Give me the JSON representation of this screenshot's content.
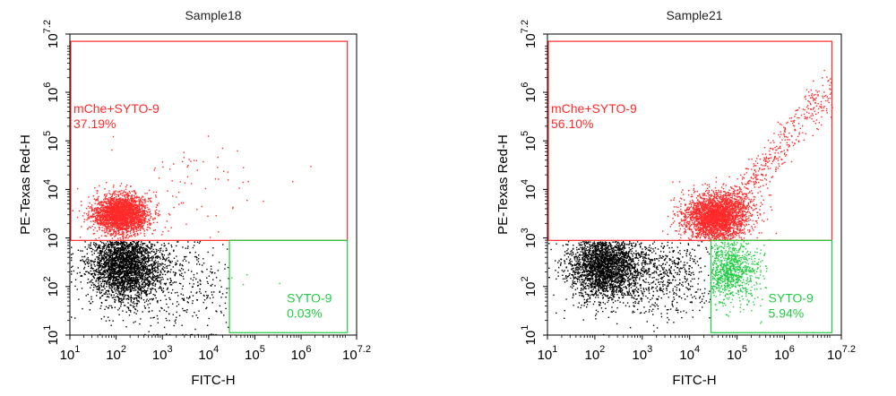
{
  "chart_data": [
    {
      "type": "scatter",
      "title": "Sample18",
      "xlabel": "FITC-H",
      "ylabel": "PE-Texas Red-H",
      "x_scale": "log",
      "y_scale": "log",
      "xlim": [
        1,
        7.2
      ],
      "ylim": [
        1,
        7.2
      ],
      "x_ticks": [
        {
          "base": "10",
          "exp": "1",
          "value": 1
        },
        {
          "base": "10",
          "exp": "2",
          "value": 2
        },
        {
          "base": "10",
          "exp": "3",
          "value": 3
        },
        {
          "base": "10",
          "exp": "4",
          "value": 4
        },
        {
          "base": "10",
          "exp": "5",
          "value": 5
        },
        {
          "base": "10",
          "exp": "6",
          "value": 6
        },
        {
          "base": "10",
          "exp": "7.2",
          "value": 7.2
        }
      ],
      "y_ticks": [
        {
          "base": "10",
          "exp": "1",
          "value": 1
        },
        {
          "base": "10",
          "exp": "2",
          "value": 2
        },
        {
          "base": "10",
          "exp": "3",
          "value": 3
        },
        {
          "base": "10",
          "exp": "4",
          "value": 4
        },
        {
          "base": "10",
          "exp": "5",
          "value": 5
        },
        {
          "base": "10",
          "exp": "6",
          "value": 6
        },
        {
          "base": "10",
          "exp": "7.2",
          "value": 7.2
        }
      ],
      "gates": [
        {
          "name": "mChe+SYTO-9",
          "percent": "37.19%",
          "color": "#ff2a2a",
          "x_range": [
            1,
            7.0
          ],
          "y_range": [
            2.95,
            7.05
          ]
        },
        {
          "name": "SYTO-9",
          "percent": "0.03%",
          "color": "#22cc44",
          "x_range": [
            4.45,
            7.0
          ],
          "y_range": [
            1.05,
            2.95
          ]
        }
      ],
      "populations": [
        {
          "gate": "mChe+SYTO-9",
          "color": "#ff2a2a",
          "center": [
            2.1,
            3.5
          ],
          "spread": [
            0.3,
            0.2
          ],
          "count": 2600
        },
        {
          "gate": "mChe+SYTO-9",
          "color": "#ff2a2a",
          "center": [
            3.6,
            4.0
          ],
          "spread": [
            0.9,
            0.55
          ],
          "count": 70
        },
        {
          "gate": "ungated",
          "color": "#000000",
          "center": [
            2.15,
            2.45
          ],
          "spread": [
            0.38,
            0.35
          ],
          "count": 2700
        },
        {
          "gate": "ungated",
          "color": "#000000",
          "center": [
            3.1,
            2.2
          ],
          "spread": [
            0.85,
            0.55
          ],
          "count": 600
        },
        {
          "gate": "SYTO-9",
          "color": "#22cc44",
          "center": [
            5.0,
            2.5
          ],
          "spread": [
            0.4,
            0.3
          ],
          "count": 4
        }
      ]
    },
    {
      "type": "scatter",
      "title": "Sample21",
      "xlabel": "FITC-H",
      "ylabel": "PE-Texas Red-H",
      "x_scale": "log",
      "y_scale": "log",
      "xlim": [
        1,
        7.2
      ],
      "ylim": [
        1,
        7.2
      ],
      "x_ticks": [
        {
          "base": "10",
          "exp": "1",
          "value": 1
        },
        {
          "base": "10",
          "exp": "2",
          "value": 2
        },
        {
          "base": "10",
          "exp": "3",
          "value": 3
        },
        {
          "base": "10",
          "exp": "4",
          "value": 4
        },
        {
          "base": "10",
          "exp": "5",
          "value": 5
        },
        {
          "base": "10",
          "exp": "6",
          "value": 6
        },
        {
          "base": "10",
          "exp": "7.2",
          "value": 7.2
        }
      ],
      "y_ticks": [
        {
          "base": "10",
          "exp": "1",
          "value": 1
        },
        {
          "base": "10",
          "exp": "2",
          "value": 2
        },
        {
          "base": "10",
          "exp": "3",
          "value": 3
        },
        {
          "base": "10",
          "exp": "4",
          "value": 4
        },
        {
          "base": "10",
          "exp": "5",
          "value": 5
        },
        {
          "base": "10",
          "exp": "6",
          "value": 6
        },
        {
          "base": "10",
          "exp": "7.2",
          "value": 7.2
        }
      ],
      "gates": [
        {
          "name": "mChe+SYTO-9",
          "percent": "56.10%",
          "color": "#ff2a2a",
          "x_range": [
            1,
            7.0
          ],
          "y_range": [
            2.95,
            7.05
          ]
        },
        {
          "name": "SYTO-9",
          "percent": "5.94%",
          "color": "#22cc44",
          "x_range": [
            4.45,
            7.0
          ],
          "y_range": [
            1.05,
            2.95
          ]
        }
      ],
      "populations": [
        {
          "gate": "mChe+SYTO-9",
          "color": "#ff2a2a",
          "center": [
            4.55,
            3.45
          ],
          "spread": [
            0.35,
            0.25
          ],
          "count": 2600
        },
        {
          "gate": "mChe+SYTO-9",
          "color": "#ff2a2a",
          "diagonal": true,
          "from": [
            4.5,
            3.2
          ],
          "to": [
            6.95,
            6.1
          ],
          "spread": 0.22,
          "count": 650
        },
        {
          "gate": "ungated",
          "color": "#000000",
          "center": [
            2.2,
            2.45
          ],
          "spread": [
            0.38,
            0.35
          ],
          "count": 2600
        },
        {
          "gate": "ungated",
          "color": "#000000",
          "center": [
            3.4,
            2.3
          ],
          "spread": [
            0.6,
            0.45
          ],
          "count": 700
        },
        {
          "gate": "SYTO-9",
          "color": "#22cc44",
          "center": [
            4.85,
            2.35
          ],
          "spread": [
            0.3,
            0.35
          ],
          "count": 1000
        }
      ]
    }
  ]
}
